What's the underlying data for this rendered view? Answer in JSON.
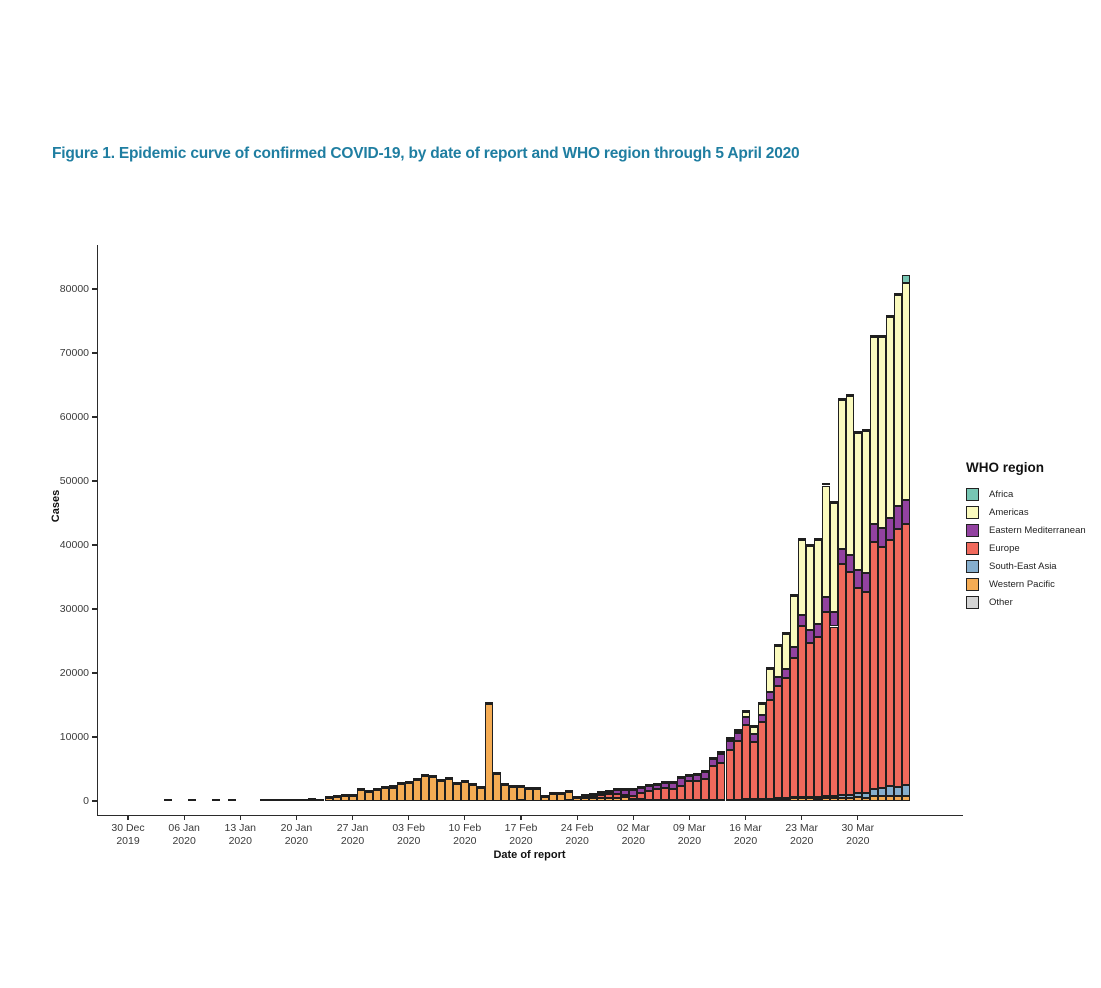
{
  "title": {
    "text": "Figure 1. Epidemic curve of confirmed COVID-19, by date of report and WHO region through 5 April 2020",
    "color": "#1F7EA1"
  },
  "chart_data": {
    "type": "bar",
    "stacked": true,
    "xlabel": "Date of report",
    "ylabel": "Cases",
    "legend_title": "WHO region",
    "legend_position": "right",
    "grid": false,
    "background": "#FFFFFF",
    "ylim": [
      0,
      86000
    ],
    "y_ticks": [
      0,
      10000,
      20000,
      30000,
      40000,
      50000,
      60000,
      70000,
      80000
    ],
    "n_days": 98,
    "x_tick_labels": [
      [
        "30 Dec",
        "2019"
      ],
      [
        "06 Jan",
        "2020"
      ],
      [
        "13 Jan",
        "2020"
      ],
      [
        "20 Jan",
        "2020"
      ],
      [
        "27 Jan",
        "2020"
      ],
      [
        "03 Feb",
        "2020"
      ],
      [
        "10 Feb",
        "2020"
      ],
      [
        "17 Feb",
        "2020"
      ],
      [
        "24 Feb",
        "2020"
      ],
      [
        "02 Mar",
        "2020"
      ],
      [
        "09 Mar",
        "2020"
      ],
      [
        "16 Mar",
        "2020"
      ],
      [
        "23 Mar",
        "2020"
      ],
      [
        "30 Mar",
        "2020"
      ]
    ],
    "x_tick_day_index": [
      0,
      7,
      14,
      21,
      28,
      35,
      42,
      49,
      56,
      63,
      70,
      77,
      84,
      91
    ],
    "stack_order_bottom_to_top": [
      "Other",
      "Western Pacific",
      "South-East Asia",
      "Europe",
      "Eastern Mediterranean",
      "Americas",
      "Africa"
    ],
    "series": [
      {
        "name": "Africa",
        "color": "#77C6B3",
        "values": [
          0,
          0,
          0,
          0,
          0,
          0,
          0,
          0,
          0,
          0,
          0,
          0,
          0,
          0,
          0,
          0,
          0,
          0,
          0,
          0,
          0,
          0,
          0,
          0,
          0,
          0,
          0,
          0,
          0,
          0,
          0,
          0,
          0,
          0,
          0,
          0,
          0,
          0,
          0,
          0,
          0,
          0,
          0,
          0,
          0,
          0,
          0,
          0,
          0,
          0,
          0,
          0,
          0,
          0,
          0,
          0,
          0,
          0,
          0,
          0,
          0,
          0,
          0,
          0,
          0,
          0,
          0,
          0,
          0,
          0,
          0,
          0,
          0,
          0,
          5,
          10,
          10,
          15,
          20,
          25,
          30,
          35,
          45,
          65,
          70,
          80,
          90,
          100,
          110,
          130,
          140,
          150,
          160,
          180,
          200,
          400,
          300,
          1150
        ]
      },
      {
        "name": "Americas",
        "color": "#FAFABE",
        "values": [
          0,
          0,
          0,
          0,
          0,
          0,
          0,
          0,
          0,
          0,
          0,
          0,
          0,
          0,
          0,
          0,
          0,
          0,
          0,
          0,
          0,
          0,
          0,
          1,
          0,
          1,
          2,
          0,
          2,
          3,
          0,
          2,
          0,
          3,
          0,
          0,
          2,
          0,
          0,
          1,
          0,
          0,
          0,
          2,
          0,
          0,
          0,
          1,
          0,
          0,
          0,
          2,
          0,
          0,
          0,
          0,
          0,
          20,
          20,
          20,
          30,
          50,
          30,
          20,
          30,
          40,
          60,
          90,
          80,
          110,
          120,
          130,
          160,
          190,
          200,
          350,
          430,
          820,
          990,
          1680,
          3600,
          4830,
          5470,
          7840,
          11640,
          13200,
          13020,
          17360,
          17010,
          23250,
          24930,
          21320,
          22110,
          29280,
          29900,
          31380,
          33020,
          34000
        ]
      },
      {
        "name": "Eastern Mediterranean",
        "color": "#9242A0",
        "values": [
          0,
          0,
          0,
          0,
          0,
          0,
          0,
          0,
          0,
          0,
          0,
          0,
          0,
          0,
          0,
          0,
          0,
          0,
          0,
          0,
          0,
          0,
          0,
          0,
          0,
          0,
          0,
          0,
          0,
          0,
          0,
          4,
          0,
          5,
          0,
          0,
          0,
          0,
          0,
          0,
          0,
          2,
          0,
          0,
          0,
          0,
          0,
          0,
          0,
          3,
          0,
          0,
          0,
          0,
          0,
          0,
          50,
          170,
          250,
          290,
          340,
          670,
          700,
          930,
          860,
          690,
          700,
          750,
          920,
          1250,
          810,
          920,
          1070,
          1090,
          1310,
          1420,
          1220,
          1190,
          1310,
          1170,
          1270,
          1430,
          1330,
          1830,
          1840,
          1940,
          2060,
          2420,
          2290,
          2440,
          2550,
          2830,
          3020,
          2880,
          2940,
          3460,
          3570,
          3760
        ]
      },
      {
        "name": "Europe",
        "color": "#F0695C",
        "values": [
          0,
          0,
          0,
          0,
          0,
          0,
          0,
          0,
          0,
          0,
          0,
          0,
          0,
          0,
          0,
          0,
          0,
          0,
          0,
          0,
          0,
          0,
          0,
          0,
          0,
          0,
          3,
          3,
          4,
          6,
          4,
          5,
          7,
          10,
          5,
          4,
          4,
          6,
          5,
          3,
          4,
          3,
          2,
          3,
          2,
          5,
          8,
          3,
          2,
          4,
          3,
          4,
          2,
          10,
          30,
          50,
          60,
          100,
          220,
          540,
          560,
          530,
          410,
          550,
          960,
          1390,
          1610,
          1790,
          1680,
          2150,
          2880,
          2930,
          3260,
          5250,
          5820,
          7770,
          9120,
          11620,
          8950,
          11970,
          15360,
          17590,
          18810,
          21750,
          26690,
          24090,
          25010,
          28750,
          26440,
          35960,
          34870,
          32090,
          31410,
          38530,
          37750,
          38500,
          40300,
          40700
        ]
      },
      {
        "name": "South-East Asia",
        "color": "#86AECD",
        "values": [
          0,
          0,
          0,
          0,
          0,
          0,
          0,
          0,
          0,
          0,
          0,
          0,
          0,
          0,
          0,
          0,
          0,
          0,
          0,
          0,
          0,
          0,
          0,
          0,
          0,
          0,
          0,
          0,
          0,
          0,
          0,
          0,
          0,
          0,
          0,
          0,
          0,
          0,
          0,
          0,
          0,
          0,
          0,
          0,
          0,
          0,
          0,
          0,
          0,
          0,
          0,
          0,
          0,
          0,
          0,
          0,
          0,
          0,
          0,
          0,
          0,
          0,
          0,
          5,
          0,
          10,
          8,
          10,
          12,
          15,
          12,
          15,
          20,
          25,
          30,
          45,
          50,
          70,
          60,
          75,
          85,
          95,
          120,
          140,
          190,
          230,
          270,
          330,
          360,
          480,
          530,
          620,
          700,
          1160,
          1230,
          1490,
          1400,
          1710
        ]
      },
      {
        "name": "Western Pacific",
        "color": "#F5AC54",
        "values": [
          0,
          0,
          0,
          0,
          0,
          44,
          0,
          0,
          17,
          0,
          0,
          41,
          0,
          40,
          0,
          0,
          0,
          17,
          10,
          59,
          77,
          60,
          310,
          150,
          270,
          460,
          690,
          780,
          800,
          1780,
          1460,
          1740,
          1990,
          2110,
          2590,
          2820,
          3220,
          3900,
          3700,
          3140,
          3390,
          2650,
          2970,
          2480,
          2020,
          15100,
          4150,
          2540,
          2120,
          2080,
          1850,
          1820,
          550,
          960,
          1130,
          1350,
          420,
          520,
          430,
          450,
          480,
          500,
          580,
          300,
          250,
          190,
          210,
          200,
          180,
          130,
          170,
          140,
          130,
          160,
          150,
          180,
          170,
          210,
          220,
          240,
          300,
          310,
          330,
          420,
          420,
          400,
          390,
          440,
          470,
          530,
          460,
          600,
          520,
          710,
          740,
          790,
          850,
          830
        ]
      },
      {
        "name": "Other",
        "color": "#D4D4D4",
        "values": [
          0,
          0,
          0,
          0,
          0,
          0,
          0,
          0,
          0,
          0,
          0,
          0,
          0,
          0,
          0,
          0,
          0,
          0,
          0,
          0,
          0,
          0,
          0,
          0,
          0,
          0,
          0,
          0,
          0,
          0,
          0,
          0,
          0,
          0,
          0,
          0,
          0,
          0,
          0,
          61,
          0,
          0,
          65,
          70,
          0,
          80,
          0,
          0,
          70,
          99,
          40,
          80,
          70,
          60,
          0,
          90,
          0,
          0,
          80,
          10,
          0,
          0,
          5,
          0,
          0,
          0,
          0,
          0,
          0,
          0,
          0,
          0,
          0,
          0,
          0,
          0,
          0,
          0,
          0,
          0,
          0,
          0,
          0,
          0,
          0,
          0,
          0,
          0,
          0,
          0,
          0,
          0,
          0,
          0,
          0,
          0,
          0,
          0
        ]
      }
    ]
  }
}
